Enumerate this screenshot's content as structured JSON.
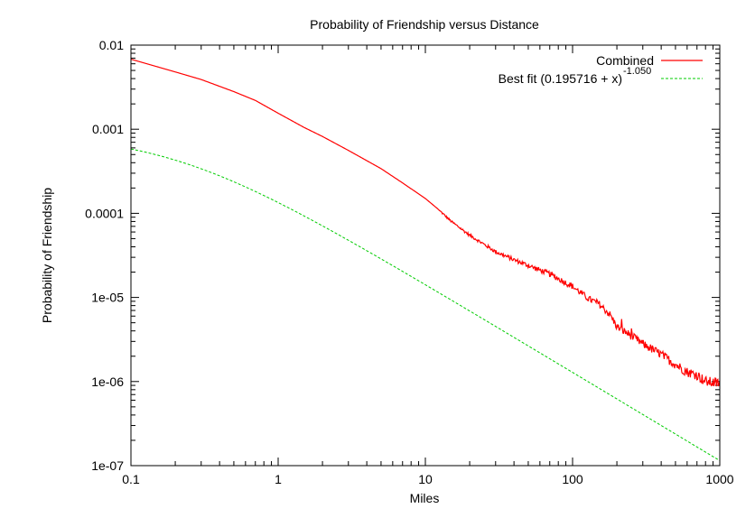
{
  "chart_data": {
    "type": "line",
    "title": "Probability of Friendship versus Distance",
    "xlabel": "Miles",
    "ylabel": "Probability of Friendship",
    "x_scale": "log",
    "y_scale": "log",
    "xlim": [
      0.1,
      1000
    ],
    "ylim": [
      1e-07,
      0.01
    ],
    "grid": false,
    "legend_position": "top-right",
    "x_ticks": [
      {
        "value": 0.1,
        "label": "0.1"
      },
      {
        "value": 1,
        "label": "1"
      },
      {
        "value": 10,
        "label": "10"
      },
      {
        "value": 100,
        "label": "100"
      },
      {
        "value": 1000,
        "label": "1000"
      }
    ],
    "y_ticks": [
      {
        "value": 1e-07,
        "label": "1e-07"
      },
      {
        "value": 1e-06,
        "label": "1e-06"
      },
      {
        "value": 1e-05,
        "label": "1e-05"
      },
      {
        "value": 0.0001,
        "label": "0.0001"
      },
      {
        "value": 0.001,
        "label": "0.001"
      },
      {
        "value": 0.01,
        "label": "0.01"
      }
    ],
    "series": [
      {
        "name": "Combined",
        "color": "#ff0000",
        "style": "solid",
        "noisy": true,
        "x": [
          0.1,
          0.2,
          0.3,
          0.5,
          0.7,
          1,
          1.5,
          2,
          3,
          5,
          7,
          10,
          12,
          15,
          20,
          30,
          40,
          50,
          70,
          100,
          130,
          150,
          180,
          200,
          250,
          300,
          400,
          500,
          600,
          700,
          800,
          1000
        ],
        "y": [
          0.0068,
          0.0048,
          0.0039,
          0.0028,
          0.0022,
          0.00155,
          0.00105,
          0.00082,
          0.00056,
          0.00034,
          0.00023,
          0.00015,
          0.000115,
          8e-05,
          5.5e-05,
          3.5e-05,
          2.8e-05,
          2.4e-05,
          1.9e-05,
          1.35e-05,
          9.5e-06,
          8.5e-06,
          6.2e-06,
          4.5e-06,
          3.5e-06,
          2.8e-06,
          2.1e-06,
          1.6e-06,
          1.3e-06,
          1.2e-06,
          1e-06,
          9.5e-07
        ]
      },
      {
        "name": "Best fit (0.195716 + x)",
        "name_superscript": "-1.050",
        "color": "#00cc00",
        "style": "dashed",
        "formula": {
          "a": 0.195716,
          "exponent": -1.05,
          "coef": 0.000162
        }
      }
    ]
  }
}
